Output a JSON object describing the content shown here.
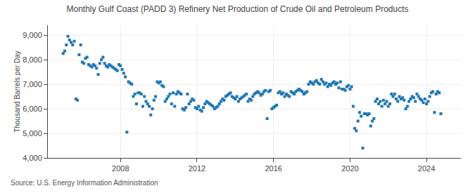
{
  "chart_data": {
    "type": "scatter",
    "title": "Monthly Gulf Coast (PADD 3) Refinery Net Production of Crude Oil and Petroleum Products",
    "ylabel": "Thousand Barrels per Day",
    "annotations": [
      "Source: U.S. Energy Information Administration"
    ],
    "marker": "square",
    "grid": true,
    "xlim": [
      2004.2,
      2025.8
    ],
    "xticks": [
      2008,
      2012,
      2016,
      2020,
      2024
    ],
    "ylim": [
      4000,
      9400
    ],
    "yticks": [
      {
        "value": 4000,
        "label": "4,000"
      },
      {
        "value": 5000,
        "label": "5,000"
      },
      {
        "value": 6000,
        "label": "6,000"
      },
      {
        "value": 7000,
        "label": "7,000"
      },
      {
        "value": 8000,
        "label": "8,000"
      },
      {
        "value": 9000,
        "label": "9,000"
      }
    ],
    "x": [
      2005.0,
      2005.083,
      2005.167,
      2005.25,
      2005.333,
      2005.417,
      2005.5,
      2005.583,
      2005.667,
      2005.75,
      2005.833,
      2005.917,
      2006.0,
      2006.083,
      2006.167,
      2006.25,
      2006.333,
      2006.417,
      2006.5,
      2006.583,
      2006.667,
      2006.75,
      2006.833,
      2006.917,
      2007.0,
      2007.083,
      2007.167,
      2007.25,
      2007.333,
      2007.417,
      2007.5,
      2007.583,
      2007.667,
      2007.75,
      2007.833,
      2007.917,
      2008.0,
      2008.083,
      2008.167,
      2008.25,
      2008.333,
      2008.417,
      2008.5,
      2008.583,
      2008.667,
      2008.75,
      2008.833,
      2008.917,
      2009.0,
      2009.083,
      2009.167,
      2009.25,
      2009.333,
      2009.417,
      2009.5,
      2009.583,
      2009.667,
      2009.75,
      2009.833,
      2009.917,
      2010.0,
      2010.083,
      2010.167,
      2010.25,
      2010.333,
      2010.417,
      2010.5,
      2010.583,
      2010.667,
      2010.75,
      2010.833,
      2010.917,
      2011.0,
      2011.083,
      2011.167,
      2011.25,
      2011.333,
      2011.417,
      2011.5,
      2011.583,
      2011.667,
      2011.75,
      2011.833,
      2011.917,
      2012.0,
      2012.083,
      2012.167,
      2012.25,
      2012.333,
      2012.417,
      2012.5,
      2012.583,
      2012.667,
      2012.75,
      2012.833,
      2012.917,
      2013.0,
      2013.083,
      2013.167,
      2013.25,
      2013.333,
      2013.417,
      2013.5,
      2013.583,
      2013.667,
      2013.75,
      2013.833,
      2013.917,
      2014.0,
      2014.083,
      2014.167,
      2014.25,
      2014.333,
      2014.417,
      2014.5,
      2014.583,
      2014.667,
      2014.75,
      2014.833,
      2014.917,
      2015.0,
      2015.083,
      2015.167,
      2015.25,
      2015.333,
      2015.417,
      2015.5,
      2015.583,
      2015.667,
      2015.75,
      2015.833,
      2015.917,
      2016.0,
      2016.083,
      2016.167,
      2016.25,
      2016.333,
      2016.417,
      2016.5,
      2016.583,
      2016.667,
      2016.75,
      2016.833,
      2016.917,
      2017.0,
      2017.083,
      2017.167,
      2017.25,
      2017.333,
      2017.417,
      2017.5,
      2017.583,
      2017.667,
      2017.75,
      2017.833,
      2017.917,
      2018.0,
      2018.083,
      2018.167,
      2018.25,
      2018.333,
      2018.417,
      2018.5,
      2018.583,
      2018.667,
      2018.75,
      2018.833,
      2018.917,
      2019.0,
      2019.083,
      2019.167,
      2019.25,
      2019.333,
      2019.417,
      2019.5,
      2019.583,
      2019.667,
      2019.75,
      2019.833,
      2019.917,
      2020.0,
      2020.083,
      2020.167,
      2020.25,
      2020.333,
      2020.417,
      2020.5,
      2020.583,
      2020.667,
      2020.75,
      2020.833,
      2020.917,
      2021.0,
      2021.083,
      2021.167,
      2021.25,
      2021.333,
      2021.417,
      2021.5,
      2021.583,
      2021.667,
      2021.75,
      2021.833,
      2021.917,
      2022.0,
      2022.083,
      2022.167,
      2022.25,
      2022.333,
      2022.417,
      2022.5,
      2022.583,
      2022.667,
      2022.75,
      2022.833,
      2022.917,
      2023.0,
      2023.083,
      2023.167,
      2023.25,
      2023.333,
      2023.417,
      2023.5,
      2023.583,
      2023.667,
      2023.75,
      2023.833,
      2023.917,
      2024.0,
      2024.083,
      2024.167,
      2024.25,
      2024.333,
      2024.417,
      2024.5,
      2024.583,
      2024.667,
      2024.75
    ],
    "values": [
      8250,
      8350,
      8600,
      8950,
      8800,
      8700,
      8600,
      8750,
      6400,
      6350,
      8200,
      8600,
      7900,
      7850,
      8050,
      8100,
      7800,
      7750,
      7700,
      7800,
      7750,
      7650,
      7400,
      7850,
      8000,
      8100,
      7850,
      7750,
      7700,
      7800,
      7750,
      7700,
      7650,
      7600,
      7550,
      7800,
      7750,
      7600,
      7450,
      7300,
      5050,
      7100,
      7050,
      7000,
      6500,
      6600,
      6200,
      6650,
      6650,
      6600,
      6100,
      6500,
      6300,
      6200,
      6100,
      5750,
      6000,
      6350,
      6500,
      7100,
      7050,
      7100,
      6950,
      6900,
      6300,
      6400,
      6500,
      6600,
      6200,
      6650,
      6100,
      6600,
      6700,
      6650,
      6600,
      6000,
      5950,
      6050,
      6600,
      6200,
      6300,
      6400,
      6350,
      6050,
      6000,
      6100,
      5950,
      5900,
      6050,
      6200,
      6300,
      6250,
      6200,
      6150,
      6100,
      6000,
      6050,
      6100,
      6200,
      6300,
      6400,
      6350,
      6500,
      6550,
      6600,
      6650,
      6500,
      6450,
      6400,
      6500,
      6300,
      6400,
      6450,
      6500,
      6550,
      6600,
      6300,
      6400,
      6350,
      6500,
      6600,
      6650,
      6700,
      6650,
      6550,
      6600,
      6700,
      6750,
      5600,
      6700,
      6750,
      6000,
      6050,
      6100,
      6150,
      6650,
      6700,
      6600,
      6650,
      6500,
      6600,
      6550,
      6500,
      6700,
      6650,
      6600,
      6700,
      6750,
      6800,
      6750,
      6700,
      6600,
      6650,
      6700,
      7000,
      7100,
      7050,
      7000,
      7100,
      7150,
      7050,
      7000,
      7200,
      7100,
      7000,
      7050,
      6900,
      7000,
      6950,
      7050,
      7100,
      7000,
      7050,
      6850,
      7100,
      6800,
      6800,
      6750,
      6900,
      6950,
      6800,
      6900,
      6100,
      5200,
      5100,
      5500,
      5850,
      5700,
      4400,
      5800,
      5800,
      5750,
      5800,
      5300,
      5500,
      5600,
      6300,
      6400,
      6200,
      6300,
      6100,
      6350,
      6200,
      6300,
      6100,
      6200,
      6600,
      6500,
      6600,
      6400,
      6300,
      6500,
      6400,
      6450,
      6350,
      6000,
      6100,
      6300,
      6400,
      6500,
      6450,
      6300,
      6600,
      6500,
      6400,
      6350,
      6250,
      6400,
      6200,
      6300,
      6500,
      6650,
      6700,
      5850,
      6600,
      6700,
      6650,
      5800
    ]
  }
}
